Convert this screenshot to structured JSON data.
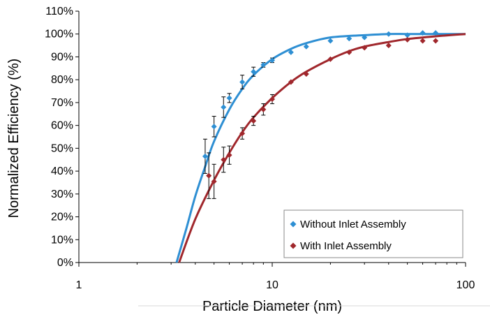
{
  "chart_data": {
    "type": "scatter",
    "title": "",
    "xlabel": "Particle Diameter (nm)",
    "ylabel": "Normalized Efficiency (%)",
    "x_scale": "log",
    "xlim": [
      1,
      100
    ],
    "ylim": [
      0,
      110
    ],
    "x_ticks": [
      1,
      10,
      100
    ],
    "x_tick_labels": [
      "1",
      "10",
      "100"
    ],
    "y_ticks": [
      0,
      10,
      20,
      30,
      40,
      50,
      60,
      70,
      80,
      90,
      100,
      110
    ],
    "y_tick_labels": [
      "0%",
      "10%",
      "20%",
      "30%",
      "40%",
      "50%",
      "60%",
      "70%",
      "80%",
      "90%",
      "100%",
      "110%"
    ],
    "grid": false,
    "legend_position": "bottom-right",
    "series": [
      {
        "name": "Without Inlet Assembly",
        "color": "#2E8FD3",
        "marker": "diamond",
        "x": [
          4.5,
          5,
          5.6,
          6,
          7,
          8,
          9,
          10,
          12.5,
          15,
          20,
          25,
          30,
          40,
          50,
          60,
          70
        ],
        "y": [
          46.5,
          59.5,
          68,
          72,
          79,
          83.5,
          86.5,
          88.5,
          92,
          94.5,
          97,
          98,
          98.5,
          100,
          99.5,
          100.5,
          100.5
        ],
        "error": [
          7.5,
          4.5,
          4.5,
          2,
          3,
          2,
          1,
          1,
          0,
          0,
          0,
          0,
          0,
          0,
          0,
          0,
          0
        ],
        "fit_x": [
          3.2,
          3.6,
          4,
          4.5,
          5,
          6,
          7,
          8,
          10,
          12.5,
          15,
          20,
          30,
          40,
          50,
          70,
          100
        ],
        "fit_y": [
          0,
          15,
          29,
          42,
          53,
          67,
          76,
          82,
          89,
          93.5,
          96,
          98.5,
          99.5,
          100,
          100,
          100,
          100
        ]
      },
      {
        "name": "With Inlet Assembly",
        "color": "#A0272C",
        "marker": "diamond",
        "x": [
          4.7,
          5,
          5.6,
          6,
          7,
          8,
          9,
          10,
          12.5,
          15,
          20,
          25,
          30,
          40,
          50,
          60,
          70
        ],
        "y": [
          38,
          35.5,
          45,
          47,
          56.5,
          62,
          67,
          71.5,
          79,
          82.5,
          89,
          92,
          94,
          95,
          97.5,
          97,
          97
        ],
        "error": [
          10,
          7.5,
          5.5,
          4,
          2.5,
          2,
          2.5,
          2,
          0,
          0,
          0,
          0,
          0,
          0,
          0,
          0,
          0
        ],
        "fit_x": [
          3.3,
          4,
          5,
          6,
          7,
          8,
          10,
          12.5,
          15,
          20,
          25,
          30,
          40,
          50,
          70,
          100
        ],
        "fit_y": [
          0,
          19,
          36,
          48,
          57,
          63.5,
          72,
          79,
          83.5,
          89,
          92.5,
          94.5,
          96.5,
          97.8,
          99,
          100
        ]
      }
    ]
  }
}
